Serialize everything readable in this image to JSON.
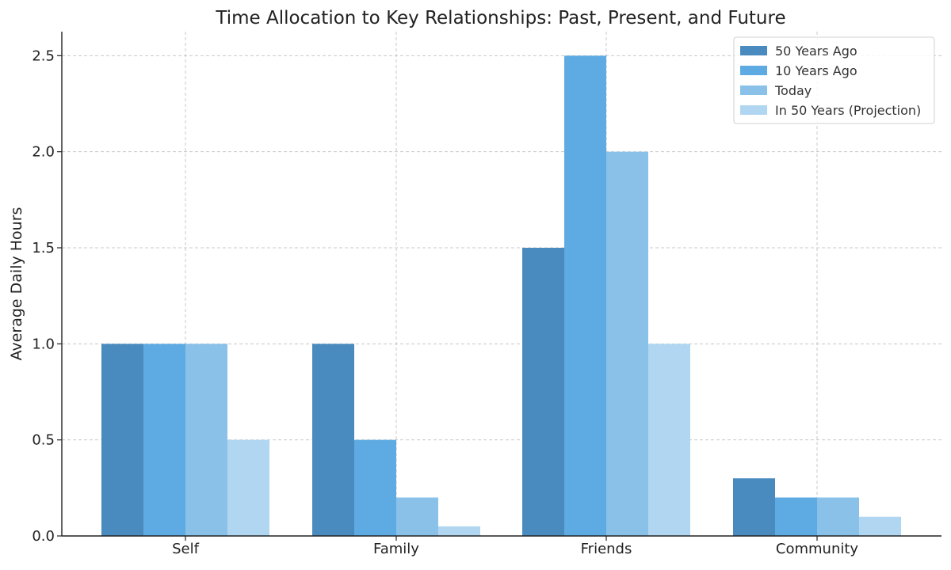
{
  "chart_data": {
    "type": "bar",
    "title": "Time Allocation to Key Relationships: Past, Present, and Future",
    "xlabel": "",
    "ylabel": "Average Daily Hours",
    "categories": [
      "Self",
      "Family",
      "Friends",
      "Community"
    ],
    "series": [
      {
        "name": "50 Years Ago",
        "color": "#4a8bbf",
        "values": [
          1.0,
          1.0,
          1.5,
          0.3
        ]
      },
      {
        "name": "10 Years Ago",
        "color": "#5dabe2",
        "values": [
          1.0,
          0.5,
          2.5,
          0.2
        ]
      },
      {
        "name": "Today",
        "color": "#89c1e9",
        "values": [
          1.0,
          0.2,
          2.0,
          0.2
        ]
      },
      {
        "name": "In 50 Years (Projection)",
        "color": "#b0d6f1",
        "values": [
          0.5,
          0.05,
          1.0,
          0.1
        ]
      }
    ],
    "yticks": [
      "0.0",
      "0.5",
      "1.0",
      "1.5",
      "2.0",
      "2.5"
    ],
    "ylim": [
      0,
      2.625
    ],
    "grid": true,
    "legend_position": "top-right"
  }
}
